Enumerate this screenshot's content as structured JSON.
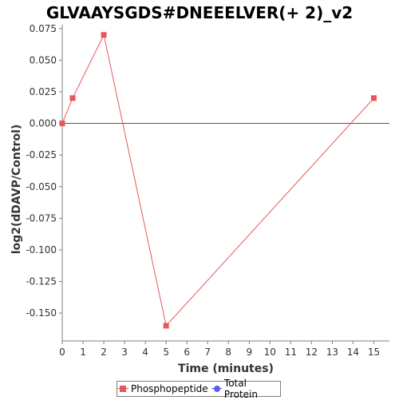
{
  "chart_data": {
    "type": "line",
    "title": "GLVAAYSGDS#DNEEELVER(+ 2)_v2",
    "xlabel": "Time (minutes)",
    "ylabel": "log2(dDAVP/Control)",
    "xlim": [
      0,
      15.75
    ],
    "ylim": [
      -0.172,
      0.078
    ],
    "x_ticks": [
      0,
      1,
      2,
      3,
      4,
      5,
      6,
      7,
      8,
      9,
      10,
      11,
      12,
      13,
      14,
      15
    ],
    "x_tick_labels": [
      "0",
      "1",
      "2",
      "3",
      "4",
      "5",
      "6",
      "7",
      "8",
      "9",
      "10",
      "11",
      "12",
      "13",
      "14",
      "15"
    ],
    "y_ticks": [
      0.075,
      0.05,
      0.025,
      0.0,
      -0.025,
      -0.05,
      -0.075,
      -0.1,
      -0.125,
      -0.15
    ],
    "y_tick_labels": [
      "0.075",
      "0.050",
      "0.025",
      "0.000",
      "-0.025",
      "-0.050",
      "-0.075",
      "-0.100",
      "-0.125",
      "-0.150"
    ],
    "grid": false,
    "zero_line": true,
    "legend_position": "bottom",
    "series": [
      {
        "name": "Phosphopeptide",
        "color": "#e8575a",
        "marker": "square",
        "x": [
          0,
          0.5,
          2,
          5,
          15
        ],
        "y": [
          0.0,
          0.02,
          0.07,
          -0.16,
          0.02
        ]
      },
      {
        "name": "Total Protein",
        "color": "#5b5bf0",
        "marker": "circle",
        "x": [],
        "y": []
      }
    ]
  }
}
